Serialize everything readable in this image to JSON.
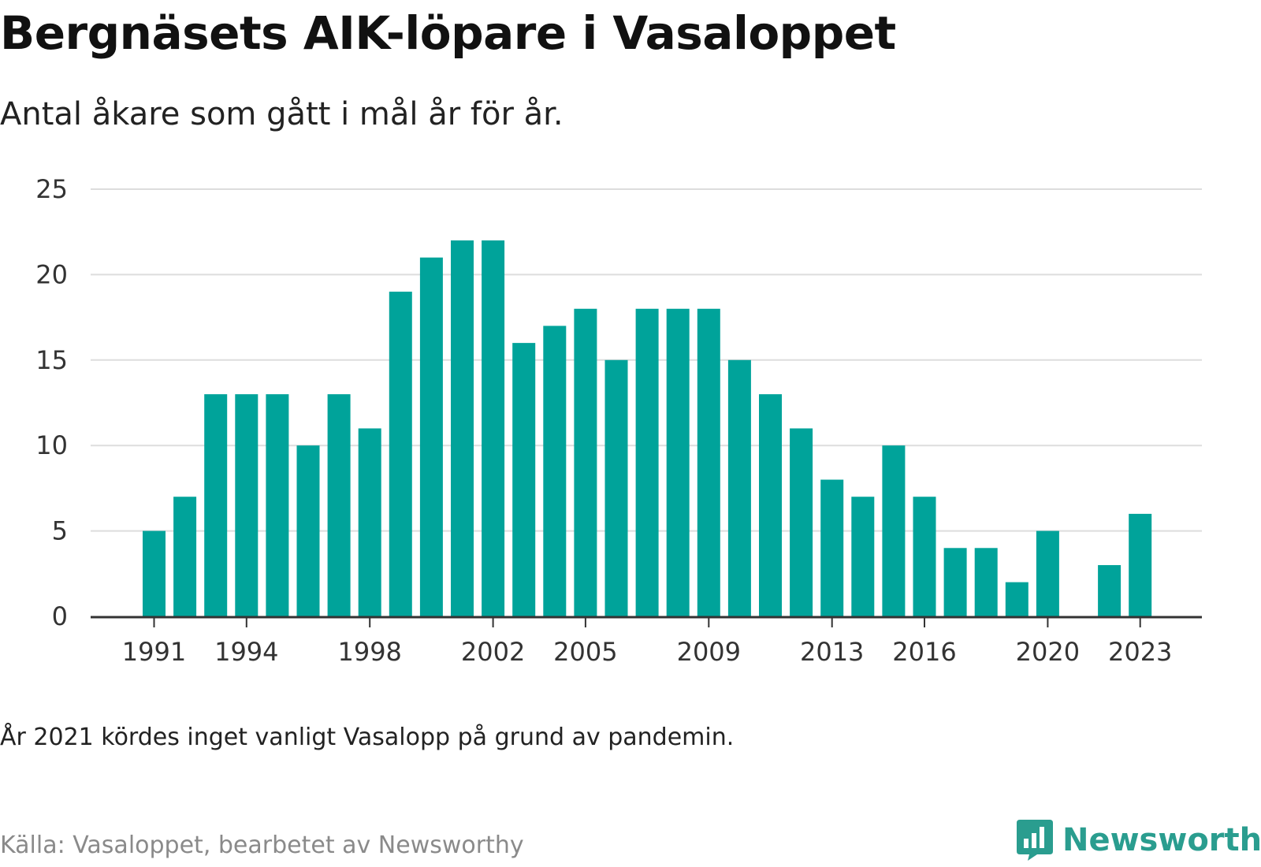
{
  "title": "Bergnäsets AIK-löpare i Vasaloppet",
  "subtitle": "Antal åkare som gått i mål år för år.",
  "note": "År 2021 kördes inget vanligt Vasalopp på grund av pandemin.",
  "source": "Källa: Vasaloppet, bearbetet av Newsworthy",
  "brand": {
    "name": "Newsworthy",
    "icon": "newsworthy-logo-icon"
  },
  "colors": {
    "bar": "#00a39a",
    "grid": "#dddddd",
    "axis": "#333333",
    "brand": "#2a9d8f"
  },
  "chart_data": {
    "type": "bar",
    "categories": [
      "1991",
      "1992",
      "1993",
      "1994",
      "1995",
      "1996",
      "1997",
      "1998",
      "1999",
      "2000",
      "2001",
      "2002",
      "2003",
      "2004",
      "2005",
      "2006",
      "2007",
      "2008",
      "2009",
      "2010",
      "2011",
      "2012",
      "2013",
      "2014",
      "2015",
      "2016",
      "2017",
      "2018",
      "2019",
      "2020",
      "2021",
      "2022",
      "2023"
    ],
    "values": [
      5,
      7,
      13,
      13,
      13,
      10,
      13,
      11,
      19,
      21,
      22,
      22,
      16,
      17,
      18,
      15,
      18,
      18,
      18,
      15,
      13,
      11,
      8,
      7,
      10,
      7,
      4,
      4,
      2,
      5,
      null,
      3,
      6
    ],
    "x_tick_labels": [
      "1991",
      "1994",
      "1998",
      "2002",
      "2005",
      "2009",
      "2013",
      "2016",
      "2020",
      "2023"
    ],
    "y_ticks": [
      0,
      5,
      10,
      15,
      20,
      25
    ],
    "ylim": [
      0,
      25
    ],
    "grid": true,
    "legend": "none"
  }
}
